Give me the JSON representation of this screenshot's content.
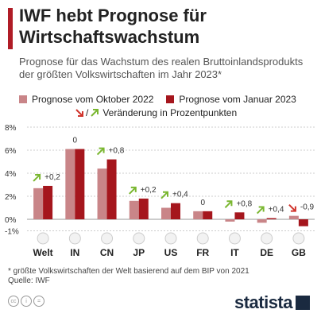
{
  "title": "IWF hebt Prognose für Wirtschaftswachstum",
  "subtitle": "Prognose für das Wachstum des realen Bruttoinlands­produkts der größten Volkswirtschaften im Jahr 2023*",
  "legend": {
    "oct_label": "Prognose vom Oktober 2022",
    "jan_label": "Prognose vom Januar 2023",
    "change_prefix": "/",
    "change_label": "Veränderung in Prozentpunkten"
  },
  "footnote": {
    "line1": "* größte Volkswirtschaften der Welt basierend auf dem BIP von 2021",
    "line2": "Quelle: IWF"
  },
  "brand": "statista",
  "colors": {
    "oct": "#c98588",
    "jan": "#a5161d",
    "accent": "#b01c26",
    "up_arrow": "#7ab730",
    "down_arrow": "#d0342c",
    "grid": "#cccccc"
  },
  "chart_data": {
    "type": "bar",
    "categories": [
      "Welt",
      "IN",
      "CN",
      "JP",
      "US",
      "FR",
      "IT",
      "DE",
      "GB"
    ],
    "icons": [
      "globe-icon",
      "flag-india-icon",
      "flag-china-icon",
      "flag-japan-icon",
      "flag-usa-icon",
      "flag-france-icon",
      "flag-italy-icon",
      "flag-germany-icon",
      "flag-uk-icon"
    ],
    "series": [
      {
        "name": "Prognose vom Oktober 2022",
        "values": [
          2.7,
          6.1,
          4.4,
          1.6,
          1.0,
          0.7,
          -0.2,
          -0.3,
          0.3
        ]
      },
      {
        "name": "Prognose vom Januar 2023",
        "values": [
          2.9,
          6.1,
          5.2,
          1.8,
          1.4,
          0.7,
          0.6,
          0.1,
          -0.6
        ]
      }
    ],
    "changes": [
      "+0,2",
      "0",
      "+0,8",
      "+0,2",
      "+0,4",
      "0",
      "+0,8",
      "+0,4",
      "-0,9"
    ],
    "change_direction": [
      "up",
      "none",
      "up",
      "up",
      "up",
      "none",
      "up",
      "up",
      "down"
    ],
    "yticks": [
      "8%",
      "6%",
      "4%",
      "2%",
      "0%",
      "-1%"
    ],
    "ytick_values": [
      8,
      6,
      4,
      2,
      0,
      -1
    ],
    "ylim": [
      -1,
      8
    ],
    "grid": true
  }
}
